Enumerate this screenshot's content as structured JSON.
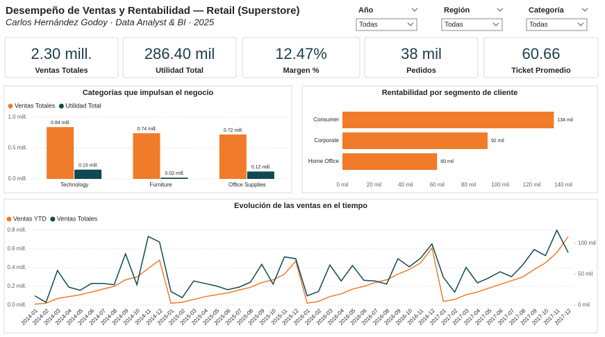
{
  "header": {
    "title": "Desempeño de Ventas y Rentabilidad — Retail (Superstore)",
    "subtitle": "Carlos Hernández Godoy · Data Analyst & BI · 2025"
  },
  "filters": [
    {
      "label": "Año",
      "value": "Todas"
    },
    {
      "label": "Región",
      "value": "Todas"
    },
    {
      "label": "Categoría",
      "value": "Todas"
    }
  ],
  "kpis": [
    {
      "value": "2.30 mill.",
      "label": "Ventas Totales"
    },
    {
      "value": "286.40 mil",
      "label": "Utilidad Total"
    },
    {
      "value": "12.47%",
      "label": "Margen %"
    },
    {
      "value": "38 mil",
      "label": "Pedidos"
    },
    {
      "value": "60.66",
      "label": "Ticket Promedio"
    }
  ],
  "chart_data": [
    {
      "type": "bar",
      "title": "Categorías que impulsan el negocio",
      "categories": [
        "Technology",
        "Furniture",
        "Office Supplies"
      ],
      "series": [
        {
          "name": "Ventas Totales",
          "color": "#f07b2a",
          "values": [
            0.84,
            0.74,
            0.72
          ],
          "value_labels": [
            "0.84 mill.",
            "0.74 mill.",
            "0.72 mill."
          ]
        },
        {
          "name": "Utilidad Total",
          "color": "#0d4a52",
          "values": [
            0.15,
            0.02,
            0.12
          ],
          "value_labels": [
            "0.15 mill.",
            "0.02 mill.",
            "0.12 mill."
          ]
        }
      ],
      "ylim": [
        0,
        1.0
      ],
      "yticks": [
        {
          "value": 0,
          "label": "0.0 mill."
        },
        {
          "value": 0.5,
          "label": "0.5 mill."
        },
        {
          "value": 1.0,
          "label": "1.0 mill."
        }
      ],
      "grid": true,
      "legend": "top-left"
    },
    {
      "type": "barh",
      "title": "Rentabilidad por segmento de cliente",
      "categories": [
        "Consumer",
        "Corporate",
        "Home Office"
      ],
      "values": [
        134,
        92,
        60
      ],
      "value_labels": [
        "134 mil",
        "92 mil",
        "60 mil"
      ],
      "color": "#f07b2a",
      "xlim": [
        0,
        140
      ],
      "xticks": [
        {
          "value": 0,
          "label": "0 mil"
        },
        {
          "value": 20,
          "label": "20 mil"
        },
        {
          "value": 40,
          "label": "40 mil"
        },
        {
          "value": 60,
          "label": "60 mil"
        },
        {
          "value": 80,
          "label": "80 mil"
        },
        {
          "value": 100,
          "label": "100 mil"
        },
        {
          "value": 120,
          "label": "120 mil"
        },
        {
          "value": 140,
          "label": "140 mil"
        }
      ]
    },
    {
      "type": "line",
      "title": "Evolución de las ventas en el tiempo",
      "categories": [
        "2014-01",
        "2014-02",
        "2014-03",
        "2014-04",
        "2014-05",
        "2014-06",
        "2014-07",
        "2014-08",
        "2014-09",
        "2014-10",
        "2014-11",
        "2014-12",
        "2015-01",
        "2015-02",
        "2015-03",
        "2015-04",
        "2015-05",
        "2015-06",
        "2015-07",
        "2015-08",
        "2015-09",
        "2015-10",
        "2015-11",
        "2015-12",
        "2016-01",
        "2016-02",
        "2016-03",
        "2016-04",
        "2016-05",
        "2016-06",
        "2016-07",
        "2016-08",
        "2016-09",
        "2016-10",
        "2016-11",
        "2016-12",
        "2017-01",
        "2017-02",
        "2017-03",
        "2017-04",
        "2017-05",
        "2017-06",
        "2017-07",
        "2017-08",
        "2017-09",
        "2017-10",
        "2017-11",
        "2017-12"
      ],
      "series": [
        {
          "name": "Ventas YTD",
          "color": "#f07b2a",
          "values": [
            0.01,
            0.02,
            0.07,
            0.09,
            0.11,
            0.14,
            0.17,
            0.2,
            0.27,
            0.3,
            0.39,
            0.48,
            0.02,
            0.03,
            0.06,
            0.09,
            0.11,
            0.13,
            0.16,
            0.19,
            0.24,
            0.27,
            0.33,
            0.47,
            0.02,
            0.04,
            0.09,
            0.12,
            0.17,
            0.2,
            0.24,
            0.27,
            0.33,
            0.38,
            0.45,
            0.61,
            0.04,
            0.06,
            0.11,
            0.14,
            0.18,
            0.22,
            0.26,
            0.3,
            0.38,
            0.45,
            0.56,
            0.73
          ]
        },
        {
          "name": "Ventas Totales",
          "color": "#0d4a52",
          "axis": "y2",
          "values": [
            15,
            4.5,
            56,
            29,
            24,
            35,
            35,
            33,
            83,
            33,
            111,
            102,
            22,
            12,
            39,
            35,
            31,
            25,
            29,
            37,
            66,
            34,
            78,
            75,
            15,
            22,
            65,
            39,
            64,
            40,
            39,
            34,
            75,
            62,
            76,
            99,
            45,
            21,
            61,
            36,
            44,
            54,
            46,
            65,
            90,
            80,
            121,
            85
          ]
        }
      ],
      "ylim": [
        0,
        0.85
      ],
      "yticks": [
        {
          "value": 0,
          "label": "0.0 mill."
        },
        {
          "value": 0.2,
          "label": "0.2 mill."
        },
        {
          "value": 0.4,
          "label": "0.4 mill."
        },
        {
          "value": 0.6,
          "label": "0.6 mill."
        },
        {
          "value": 0.8,
          "label": "0.8 mill."
        }
      ],
      "y2lim": [
        0,
        129
      ],
      "y2ticks": [
        {
          "value": 0,
          "label": "0 mil"
        },
        {
          "value": 50,
          "label": "50 mil"
        },
        {
          "value": 100,
          "label": "100 mil"
        }
      ],
      "grid": true,
      "legend": "top-left"
    }
  ]
}
